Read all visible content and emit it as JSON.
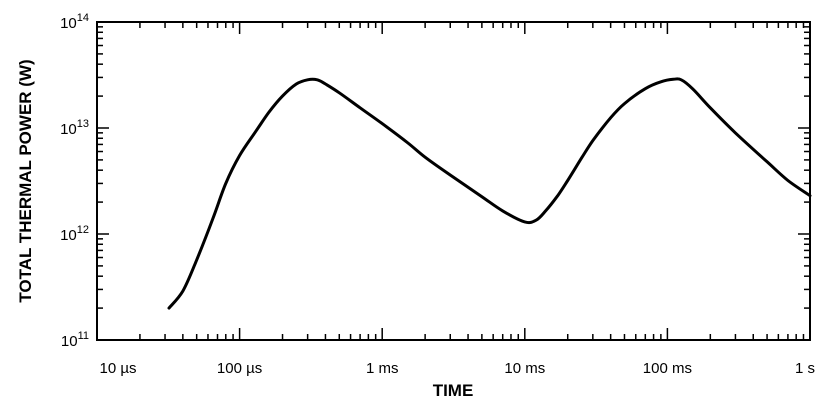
{
  "chart_data": {
    "type": "line",
    "title": "",
    "xlabel": "TIME",
    "ylabel": "TOTAL THERMAL POWER (W)",
    "xscale": "log",
    "yscale": "log",
    "xlim": [
      1e-05,
      1
    ],
    "ylim": [
      100000000000,
      100000000000000
    ],
    "grid": false,
    "legend": "none",
    "x_ticks": [
      {
        "value": 1e-05,
        "label": "10 µs"
      },
      {
        "value": 0.0001,
        "label": "100 µs"
      },
      {
        "value": 0.001,
        "label": "1 ms"
      },
      {
        "value": 0.01,
        "label": "10 ms"
      },
      {
        "value": 0.1,
        "label": "100 ms"
      },
      {
        "value": 1,
        "label": "1 s"
      }
    ],
    "y_ticks": [
      {
        "value": 100000000000,
        "base": "10",
        "exp": "11"
      },
      {
        "value": 1000000000000,
        "base": "10",
        "exp": "12"
      },
      {
        "value": 10000000000000,
        "base": "10",
        "exp": "13"
      },
      {
        "value": 100000000000000,
        "base": "10",
        "exp": "14"
      }
    ],
    "series": [
      {
        "color": "#000000",
        "x": [
          3.2e-05,
          4e-05,
          5e-05,
          6.5e-05,
          8e-05,
          0.0001,
          0.00013,
          0.00016,
          0.0002,
          0.00025,
          0.0003,
          0.00035,
          0.0004,
          0.0005,
          0.0007,
          0.001,
          0.0015,
          0.002,
          0.003,
          0.005,
          0.007,
          0.01,
          0.012,
          0.014,
          0.017,
          0.02,
          0.025,
          0.03,
          0.04,
          0.05,
          0.07,
          0.09,
          0.11,
          0.125,
          0.15,
          0.2,
          0.3,
          0.5,
          0.7,
          1.0
        ],
        "y": [
          200000000000,
          290000000000,
          570000000000,
          1400000000000,
          3000000000000,
          5500000000000,
          9300000000000,
          14000000000000,
          20000000000000,
          26000000000000,
          28500000000000,
          28500000000000,
          26000000000000,
          21500000000000,
          15500000000000,
          11000000000000,
          7300000000000,
          5300000000000,
          3600000000000,
          2250000000000,
          1650000000000,
          1300000000000,
          1350000000000,
          1650000000000,
          2300000000000,
          3200000000000,
          5200000000000,
          7600000000000,
          12500000000000,
          17000000000000,
          23500000000000,
          27300000000000,
          28800000000000,
          28500000000000,
          23500000000000,
          15500000000000,
          9000000000000,
          4800000000000,
          3200000000000,
          2300000000000
        ]
      }
    ]
  }
}
